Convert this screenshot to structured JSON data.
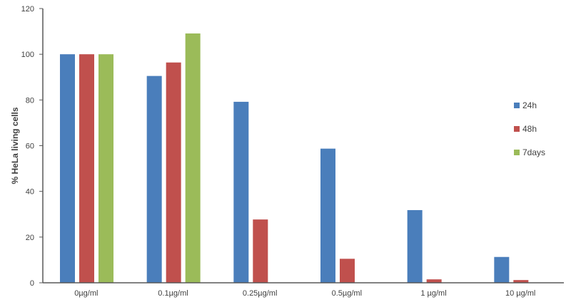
{
  "chart_data": {
    "type": "bar",
    "title": "",
    "xlabel": "",
    "ylabel": "% HeLa living cells",
    "ylim": [
      0,
      120
    ],
    "yticks": [
      0,
      20,
      40,
      60,
      80,
      100,
      120
    ],
    "grid": false,
    "legend_position": "right",
    "categories": [
      "0µg/ml",
      "0.1µg/ml",
      "0.25µg/ml",
      "0.5µg/ml",
      "1 µg/ml",
      "10 µg/ml"
    ],
    "series": [
      {
        "name": "24h",
        "color": "#4a7ebb",
        "values": [
          100,
          90.5,
          79.2,
          58.7,
          31.8,
          11.3
        ]
      },
      {
        "name": "48h",
        "color": "#c0504d",
        "values": [
          100,
          96.4,
          27.7,
          10.5,
          1.5,
          1.2
        ]
      },
      {
        "name": "7days",
        "color": "#9bbb59",
        "values": [
          100,
          109.1,
          null,
          null,
          null,
          null
        ]
      }
    ]
  }
}
